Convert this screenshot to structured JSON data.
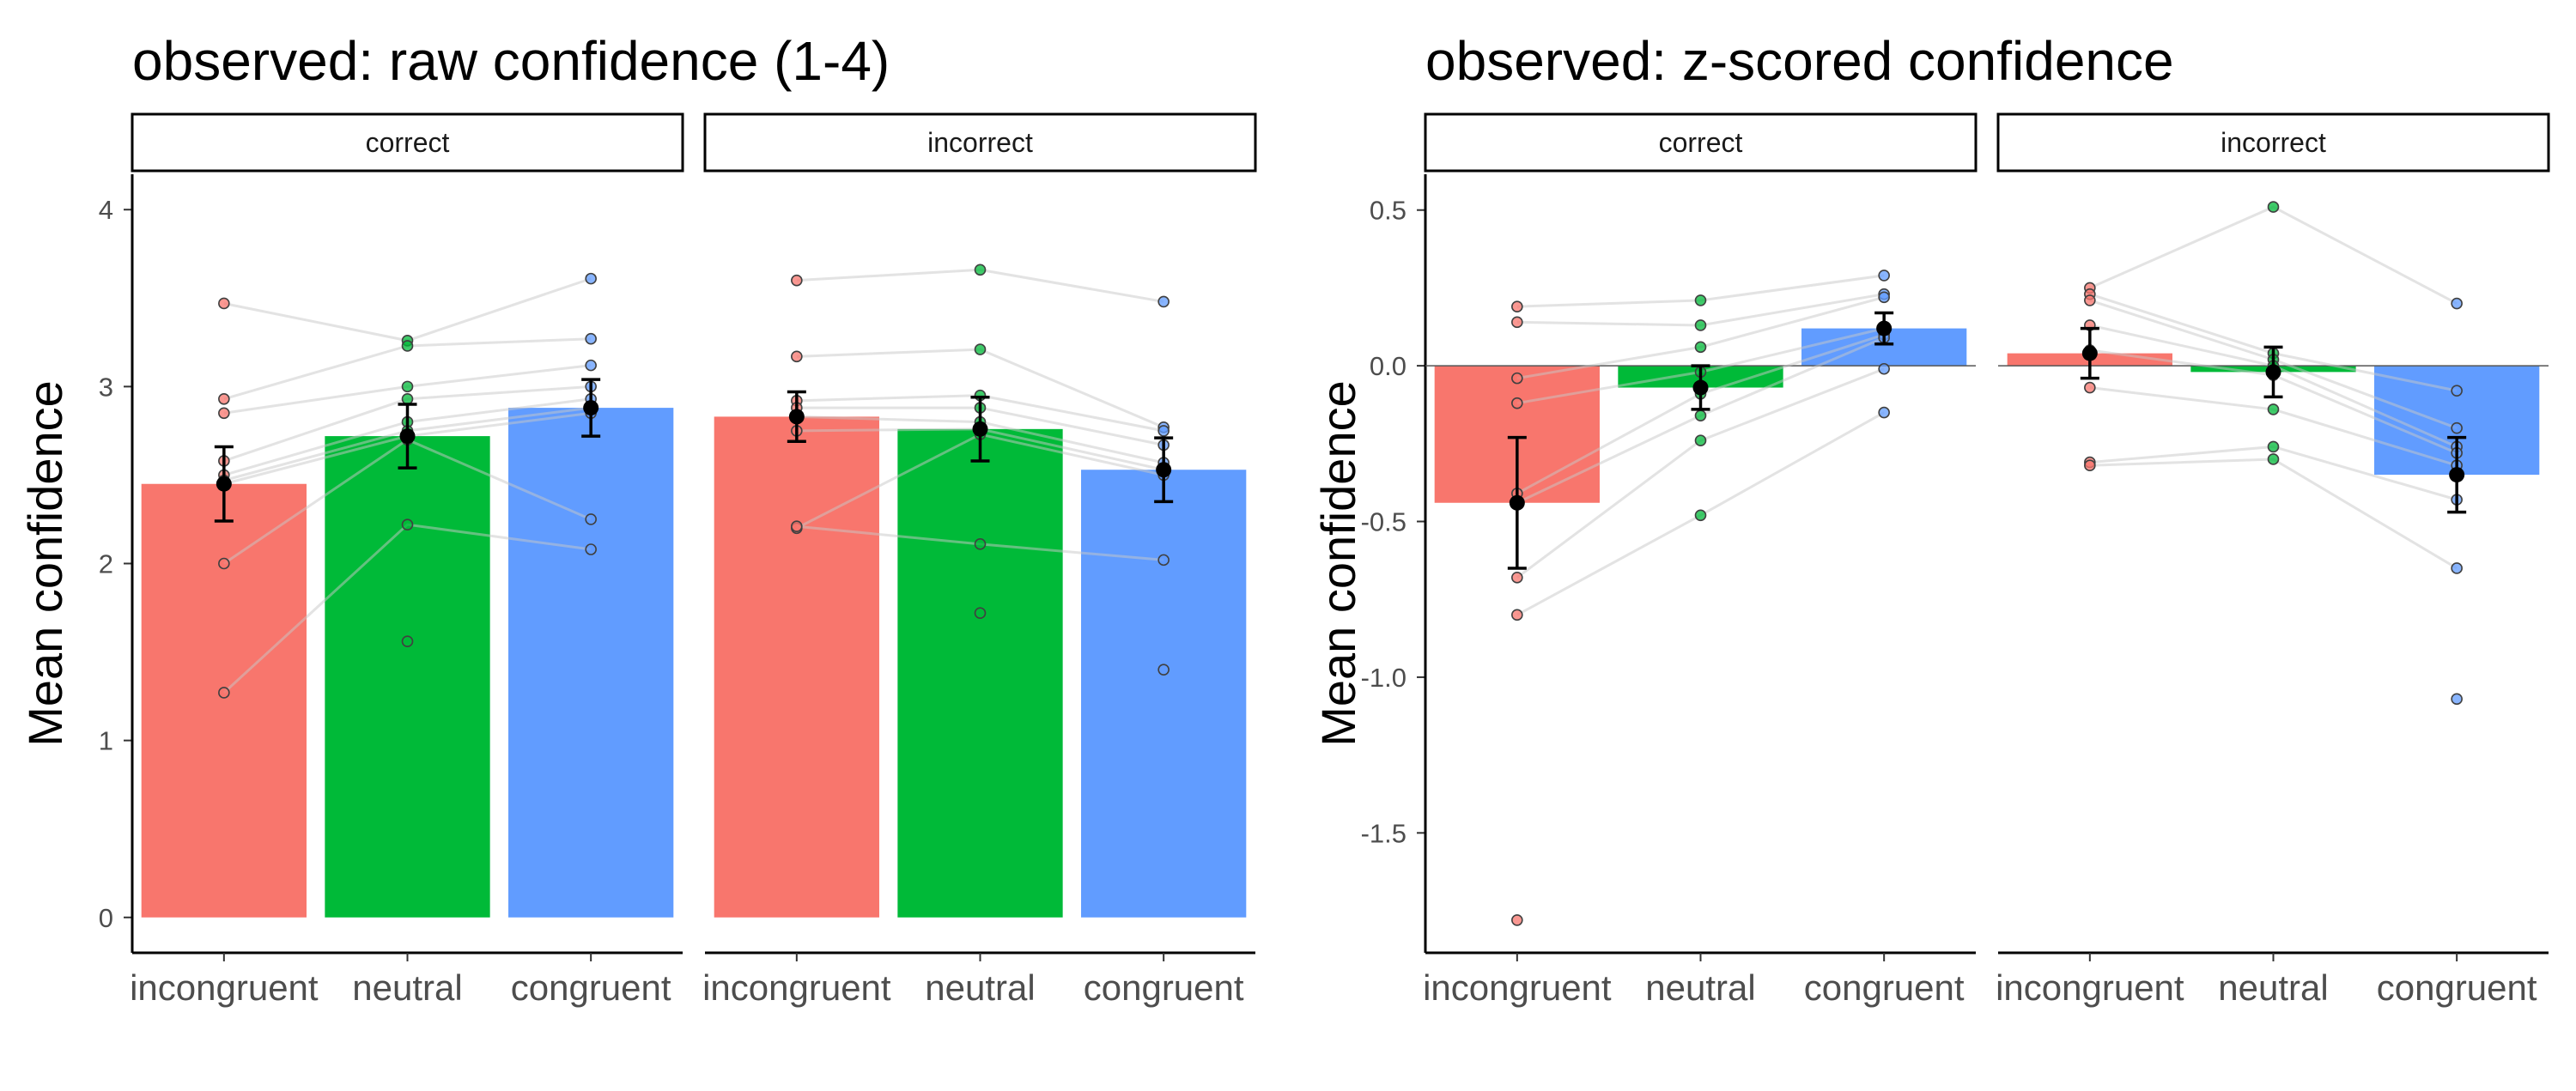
{
  "chart_data": [
    {
      "type": "bar",
      "title": "observed: raw confidence (1-4)",
      "ylabel": "Mean confidence",
      "xlabel": "",
      "ylim": [
        -0.2,
        4.2
      ],
      "yticks": [
        0,
        1,
        2,
        3,
        4
      ],
      "ytick_labels": [
        "0",
        "1",
        "2",
        "3",
        "4"
      ],
      "zero_line": false,
      "categories": [
        "incongruent",
        "neutral",
        "congruent"
      ],
      "colors": [
        "#F8766D",
        "#00BA38",
        "#619CFF"
      ],
      "facets": [
        {
          "label": "correct",
          "means": [
            2.45,
            2.72,
            2.88
          ],
          "se": [
            0.21,
            0.18,
            0.16
          ],
          "points": [
            [
              3.47,
              2.93,
              2.85,
              2.58,
              2.5,
              2.47,
              2.45,
              2.0,
              1.27
            ],
            [
              3.26,
              3.23,
              3.0,
              2.93,
              2.8,
              2.75,
              2.72,
              2.7,
              2.22,
              1.56
            ],
            [
              3.61,
              3.27,
              3.12,
              3.0,
              2.93,
              2.88,
              2.85,
              2.25,
              2.08
            ]
          ]
        },
        {
          "label": "incorrect",
          "means": [
            2.83,
            2.76,
            2.53
          ],
          "se": [
            0.14,
            0.18,
            0.18
          ],
          "points": [
            [
              3.6,
              3.17,
              2.92,
              2.88,
              2.83,
              2.75,
              2.2,
              2.21
            ],
            [
              3.66,
              3.21,
              2.95,
              2.88,
              2.8,
              2.76,
              2.73,
              2.11,
              1.72
            ],
            [
              3.48,
              2.77,
              2.75,
              2.67,
              2.57,
              2.53,
              2.5,
              2.02,
              1.4
            ]
          ]
        }
      ]
    },
    {
      "type": "bar",
      "title": "observed: z-scored confidence",
      "ylabel": "Mean confidence",
      "xlabel": "",
      "ylim": [
        -1.885,
        0.615
      ],
      "yticks": [
        0.5,
        0.0,
        -0.5,
        -1.0,
        -1.5
      ],
      "ytick_labels": [
        "0.5",
        "0.0",
        "-0.5",
        "-1.0",
        "-1.5"
      ],
      "zero_line": true,
      "categories": [
        "incongruent",
        "neutral",
        "congruent"
      ],
      "colors": [
        "#F8766D",
        "#00BA38",
        "#619CFF"
      ],
      "facets": [
        {
          "label": "correct",
          "means": [
            -0.44,
            -0.07,
            0.12
          ],
          "se": [
            0.21,
            0.07,
            0.05
          ],
          "points": [
            [
              0.19,
              0.14,
              -0.04,
              -0.12,
              -0.41,
              -0.44,
              -0.68,
              -0.8,
              -1.78
            ],
            [
              0.21,
              0.13,
              0.06,
              -0.02,
              -0.09,
              -0.16,
              -0.24,
              -0.48
            ],
            [
              0.29,
              0.23,
              0.22,
              0.12,
              0.1,
              0.09,
              -0.01,
              -0.15
            ]
          ]
        },
        {
          "label": "incorrect",
          "means": [
            0.04,
            -0.02,
            -0.35
          ],
          "se": [
            0.08,
            0.08,
            0.12
          ],
          "points": [
            [
              0.25,
              0.23,
              0.21,
              0.13,
              0.05,
              -0.07,
              -0.31,
              -0.32
            ],
            [
              0.51,
              0.04,
              0.02,
              0.0,
              -0.03,
              -0.14,
              -0.26,
              -0.3
            ],
            [
              0.2,
              -0.08,
              -0.2,
              -0.26,
              -0.28,
              -0.32,
              -0.43,
              -0.65,
              -1.07
            ]
          ]
        }
      ]
    }
  ]
}
